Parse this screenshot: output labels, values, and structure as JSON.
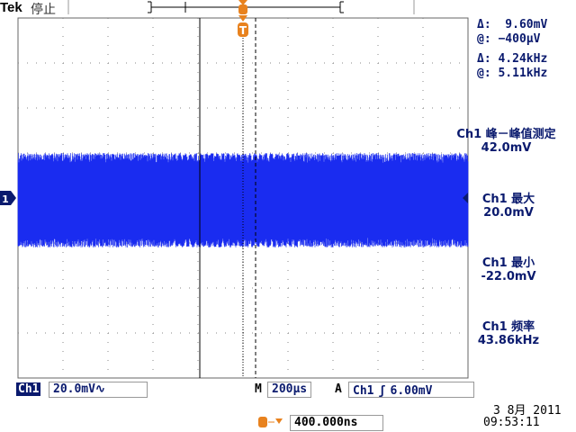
{
  "header": {
    "brand": "Tek",
    "state": "停止"
  },
  "cursors": {
    "delta_v": "Δ:  9.60mV",
    "at_v": "@: −400μV",
    "delta_f": "Δ: 4.24kHz",
    "at_f": "@: 5.11kHz"
  },
  "measurements": [
    {
      "label": "Ch1 峰－峰值测定",
      "value": "42.0mV"
    },
    {
      "label": "Ch1 最大",
      "value": "20.0mV"
    },
    {
      "label": "Ch1 最小",
      "value": "-22.0mV"
    },
    {
      "label": "Ch1 频率",
      "value": "43.86kHz"
    }
  ],
  "bottom": {
    "channel": "Ch1",
    "volts_div": "20.0mV∿",
    "m_label": "M",
    "timebase": "200μs",
    "a_label": "A",
    "trig_source": "Ch1",
    "trig_slope": "ʃ",
    "trig_level": "6.00mV",
    "trig_offset": "400.000ns",
    "date": "3 8月 2011",
    "time": "09:53:11"
  },
  "channel_marker": "1",
  "trigger_marker": "T",
  "colors": {
    "trace": "#1a2cf0",
    "trigger": "#e8821e",
    "text": "#0a1a6e"
  }
}
